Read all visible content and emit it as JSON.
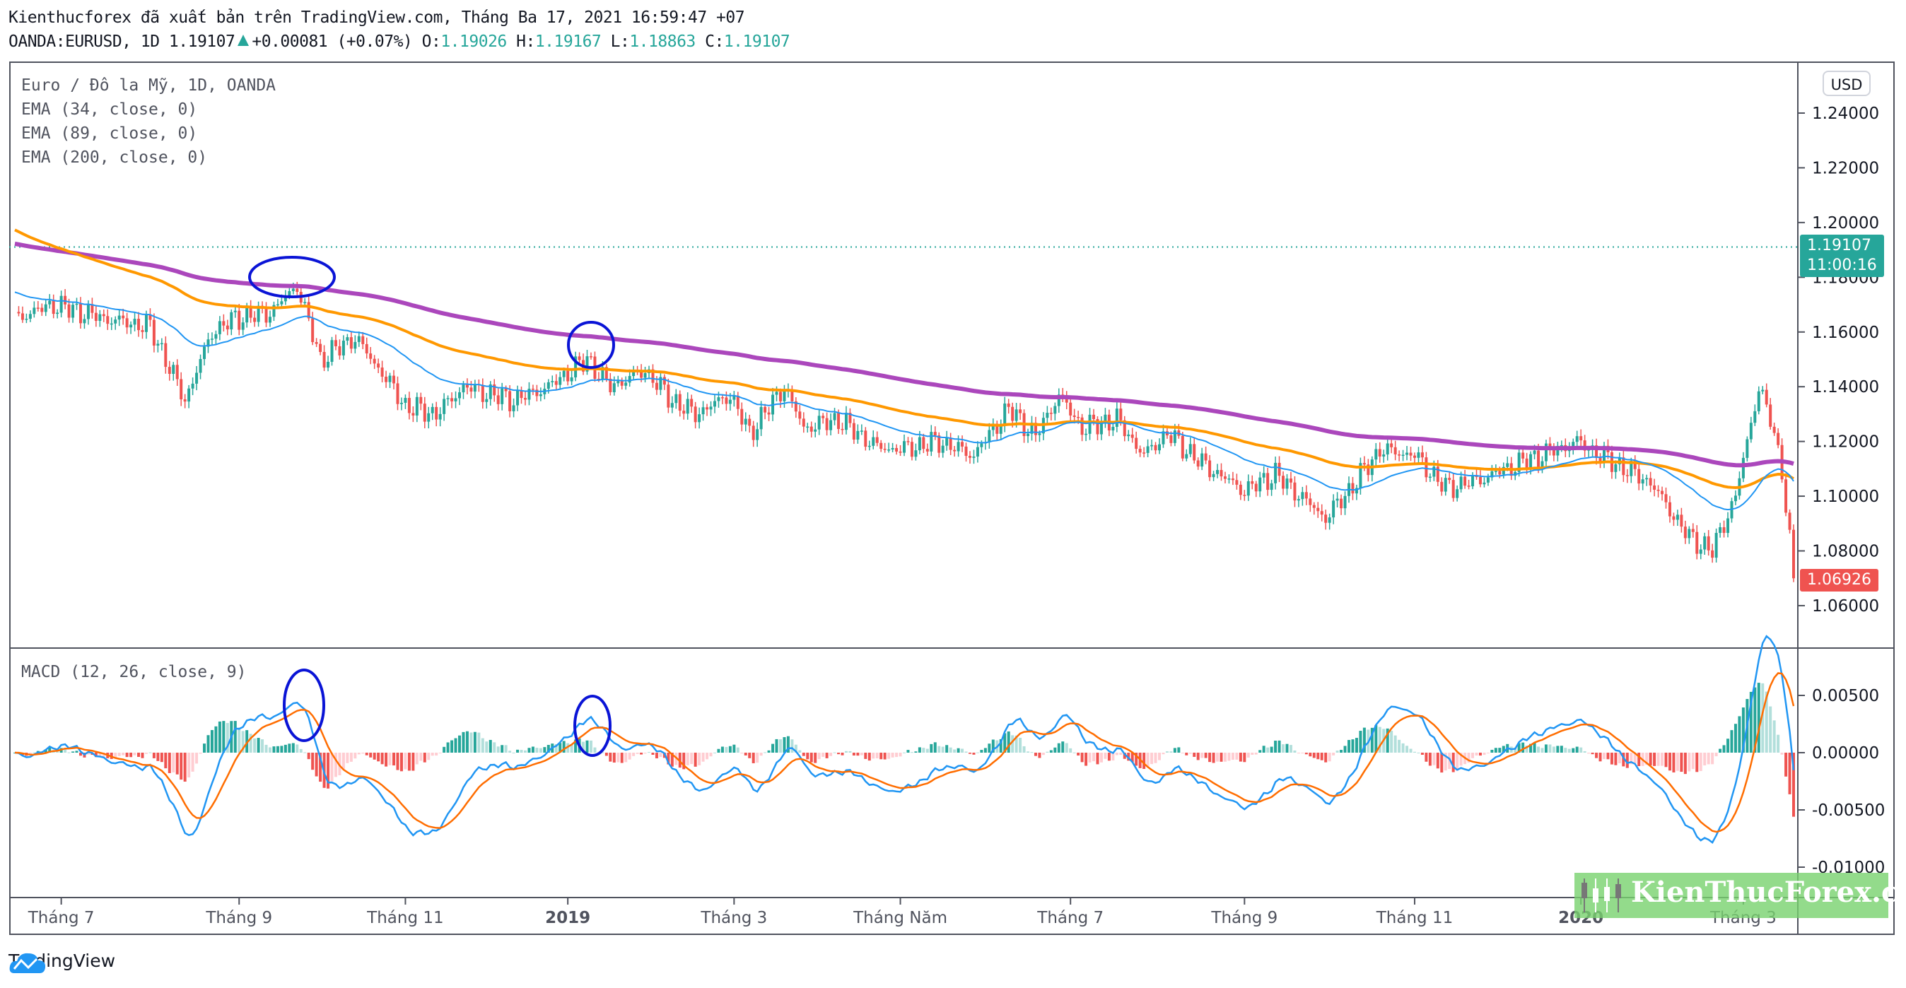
{
  "header": {
    "published": "Kienthucforex đã xuất bản trên TradingView.com, Tháng Ba 17, 2021 16:59:47 +07",
    "symbol": "OANDA:EURUSD, 1D",
    "last": "1.19107",
    "change": "+0.00081 (+0.07%)",
    "o_label": "O:",
    "o": "1.19026",
    "h_label": "H:",
    "h": "1.19167",
    "l_label": "L:",
    "l": "1.18863",
    "c_label": "C:",
    "c": "1.19107"
  },
  "legend": {
    "main": "Euro / Đô la Mỹ, 1D, OANDA",
    "ema34": "EMA (34, close, 0)",
    "ema89": "EMA (89, close, 0)",
    "ema200": "EMA (200, close, 0)",
    "macd": "MACD (12, 26, close, 9)"
  },
  "price_axis": {
    "currency": "USD",
    "ticks": [
      "1.24000",
      "1.22000",
      "1.20000",
      "1.18000",
      "1.16000",
      "1.14000",
      "1.12000",
      "1.10000",
      "1.08000",
      "1.06000"
    ],
    "last_tag": "1.19107",
    "countdown": "11:00:16",
    "current_tag": "1.06926"
  },
  "macd_axis": {
    "ticks": [
      "0.00500",
      "0.00000",
      "-0.00500",
      "-0.01000"
    ]
  },
  "footer": {
    "brand": "TradingView"
  },
  "watermark": "KienThucForex.com",
  "colors": {
    "up": "#26a69a",
    "down": "#ef5350",
    "ema34": "#2196f3",
    "ema89": "#ff9800",
    "ema200": "#ab47bc",
    "macd": "#2196f3",
    "signal": "#ff6d00",
    "annotation": "#0a14d6"
  },
  "chart_data": {
    "type": "candlestick",
    "symbol": "EURUSD",
    "timeframe": "1D",
    "ylim": [
      1.06,
      1.24
    ],
    "macd_ylim": [
      -0.0125,
      0.0095
    ],
    "price_ticks": [
      1.24,
      1.22,
      1.2,
      1.18,
      1.16,
      1.14,
      1.12,
      1.1,
      1.08,
      1.06
    ],
    "macd_ticks": [
      0.005,
      0,
      -0.005,
      -0.01
    ],
    "last_price": 1.19107,
    "current_price": 1.06926,
    "total_days": 460,
    "ema_seed": {
      "ema34": 1.175,
      "ema89": 1.198,
      "ema200": 1.1925
    },
    "price_path": [
      [
        0,
        1.165
      ],
      [
        10,
        1.17
      ],
      [
        23,
        1.165
      ],
      [
        35,
        1.162
      ],
      [
        44,
        1.135
      ],
      [
        51,
        1.16
      ],
      [
        57,
        1.165
      ],
      [
        66,
        1.167
      ],
      [
        73,
        1.177
      ],
      [
        79,
        1.15
      ],
      [
        88,
        1.158
      ],
      [
        95,
        1.145
      ],
      [
        101,
        1.133
      ],
      [
        109,
        1.13
      ],
      [
        116,
        1.14
      ],
      [
        129,
        1.135
      ],
      [
        138,
        1.14
      ],
      [
        148,
        1.15
      ],
      [
        154,
        1.14
      ],
      [
        163,
        1.146
      ],
      [
        170,
        1.135
      ],
      [
        176,
        1.13
      ],
      [
        185,
        1.137
      ],
      [
        190,
        1.123
      ],
      [
        199,
        1.14
      ],
      [
        204,
        1.125
      ],
      [
        213,
        1.128
      ],
      [
        223,
        1.118
      ],
      [
        229,
        1.117
      ],
      [
        239,
        1.12
      ],
      [
        248,
        1.115
      ],
      [
        257,
        1.132
      ],
      [
        264,
        1.122
      ],
      [
        270,
        1.137
      ],
      [
        276,
        1.125
      ],
      [
        285,
        1.128
      ],
      [
        292,
        1.115
      ],
      [
        298,
        1.123
      ],
      [
        307,
        1.112
      ],
      [
        318,
        1.102
      ],
      [
        326,
        1.108
      ],
      [
        339,
        1.092
      ],
      [
        345,
        1.102
      ],
      [
        353,
        1.117
      ],
      [
        362,
        1.115
      ],
      [
        370,
        1.103
      ],
      [
        379,
        1.106
      ],
      [
        389,
        1.112
      ],
      [
        395,
        1.115
      ],
      [
        404,
        1.12
      ],
      [
        414,
        1.112
      ],
      [
        423,
        1.105
      ],
      [
        433,
        1.085
      ],
      [
        439,
        1.08
      ],
      [
        445,
        1.1
      ],
      [
        451,
        1.14
      ],
      [
        454,
        1.128
      ],
      [
        457,
        1.11
      ],
      [
        460,
        1.07
      ]
    ],
    "time_labels": [
      {
        "day": 12,
        "label": "Tháng 7",
        "bold": false
      },
      {
        "day": 58,
        "label": "Tháng 9",
        "bold": false
      },
      {
        "day": 101,
        "label": "Tháng 11",
        "bold": false
      },
      {
        "day": 143,
        "label": "2019",
        "bold": true
      },
      {
        "day": 186,
        "label": "Tháng 3",
        "bold": false
      },
      {
        "day": 229,
        "label": "Tháng Năm",
        "bold": false
      },
      {
        "day": 273,
        "label": "Tháng 7",
        "bold": false
      },
      {
        "day": 318,
        "label": "Tháng 9",
        "bold": false
      },
      {
        "day": 362,
        "label": "Tháng 11",
        "bold": false
      },
      {
        "day": 405,
        "label": "2020",
        "bold": true
      },
      {
        "day": 447,
        "label": "Tháng 3",
        "bold": false
      }
    ]
  }
}
